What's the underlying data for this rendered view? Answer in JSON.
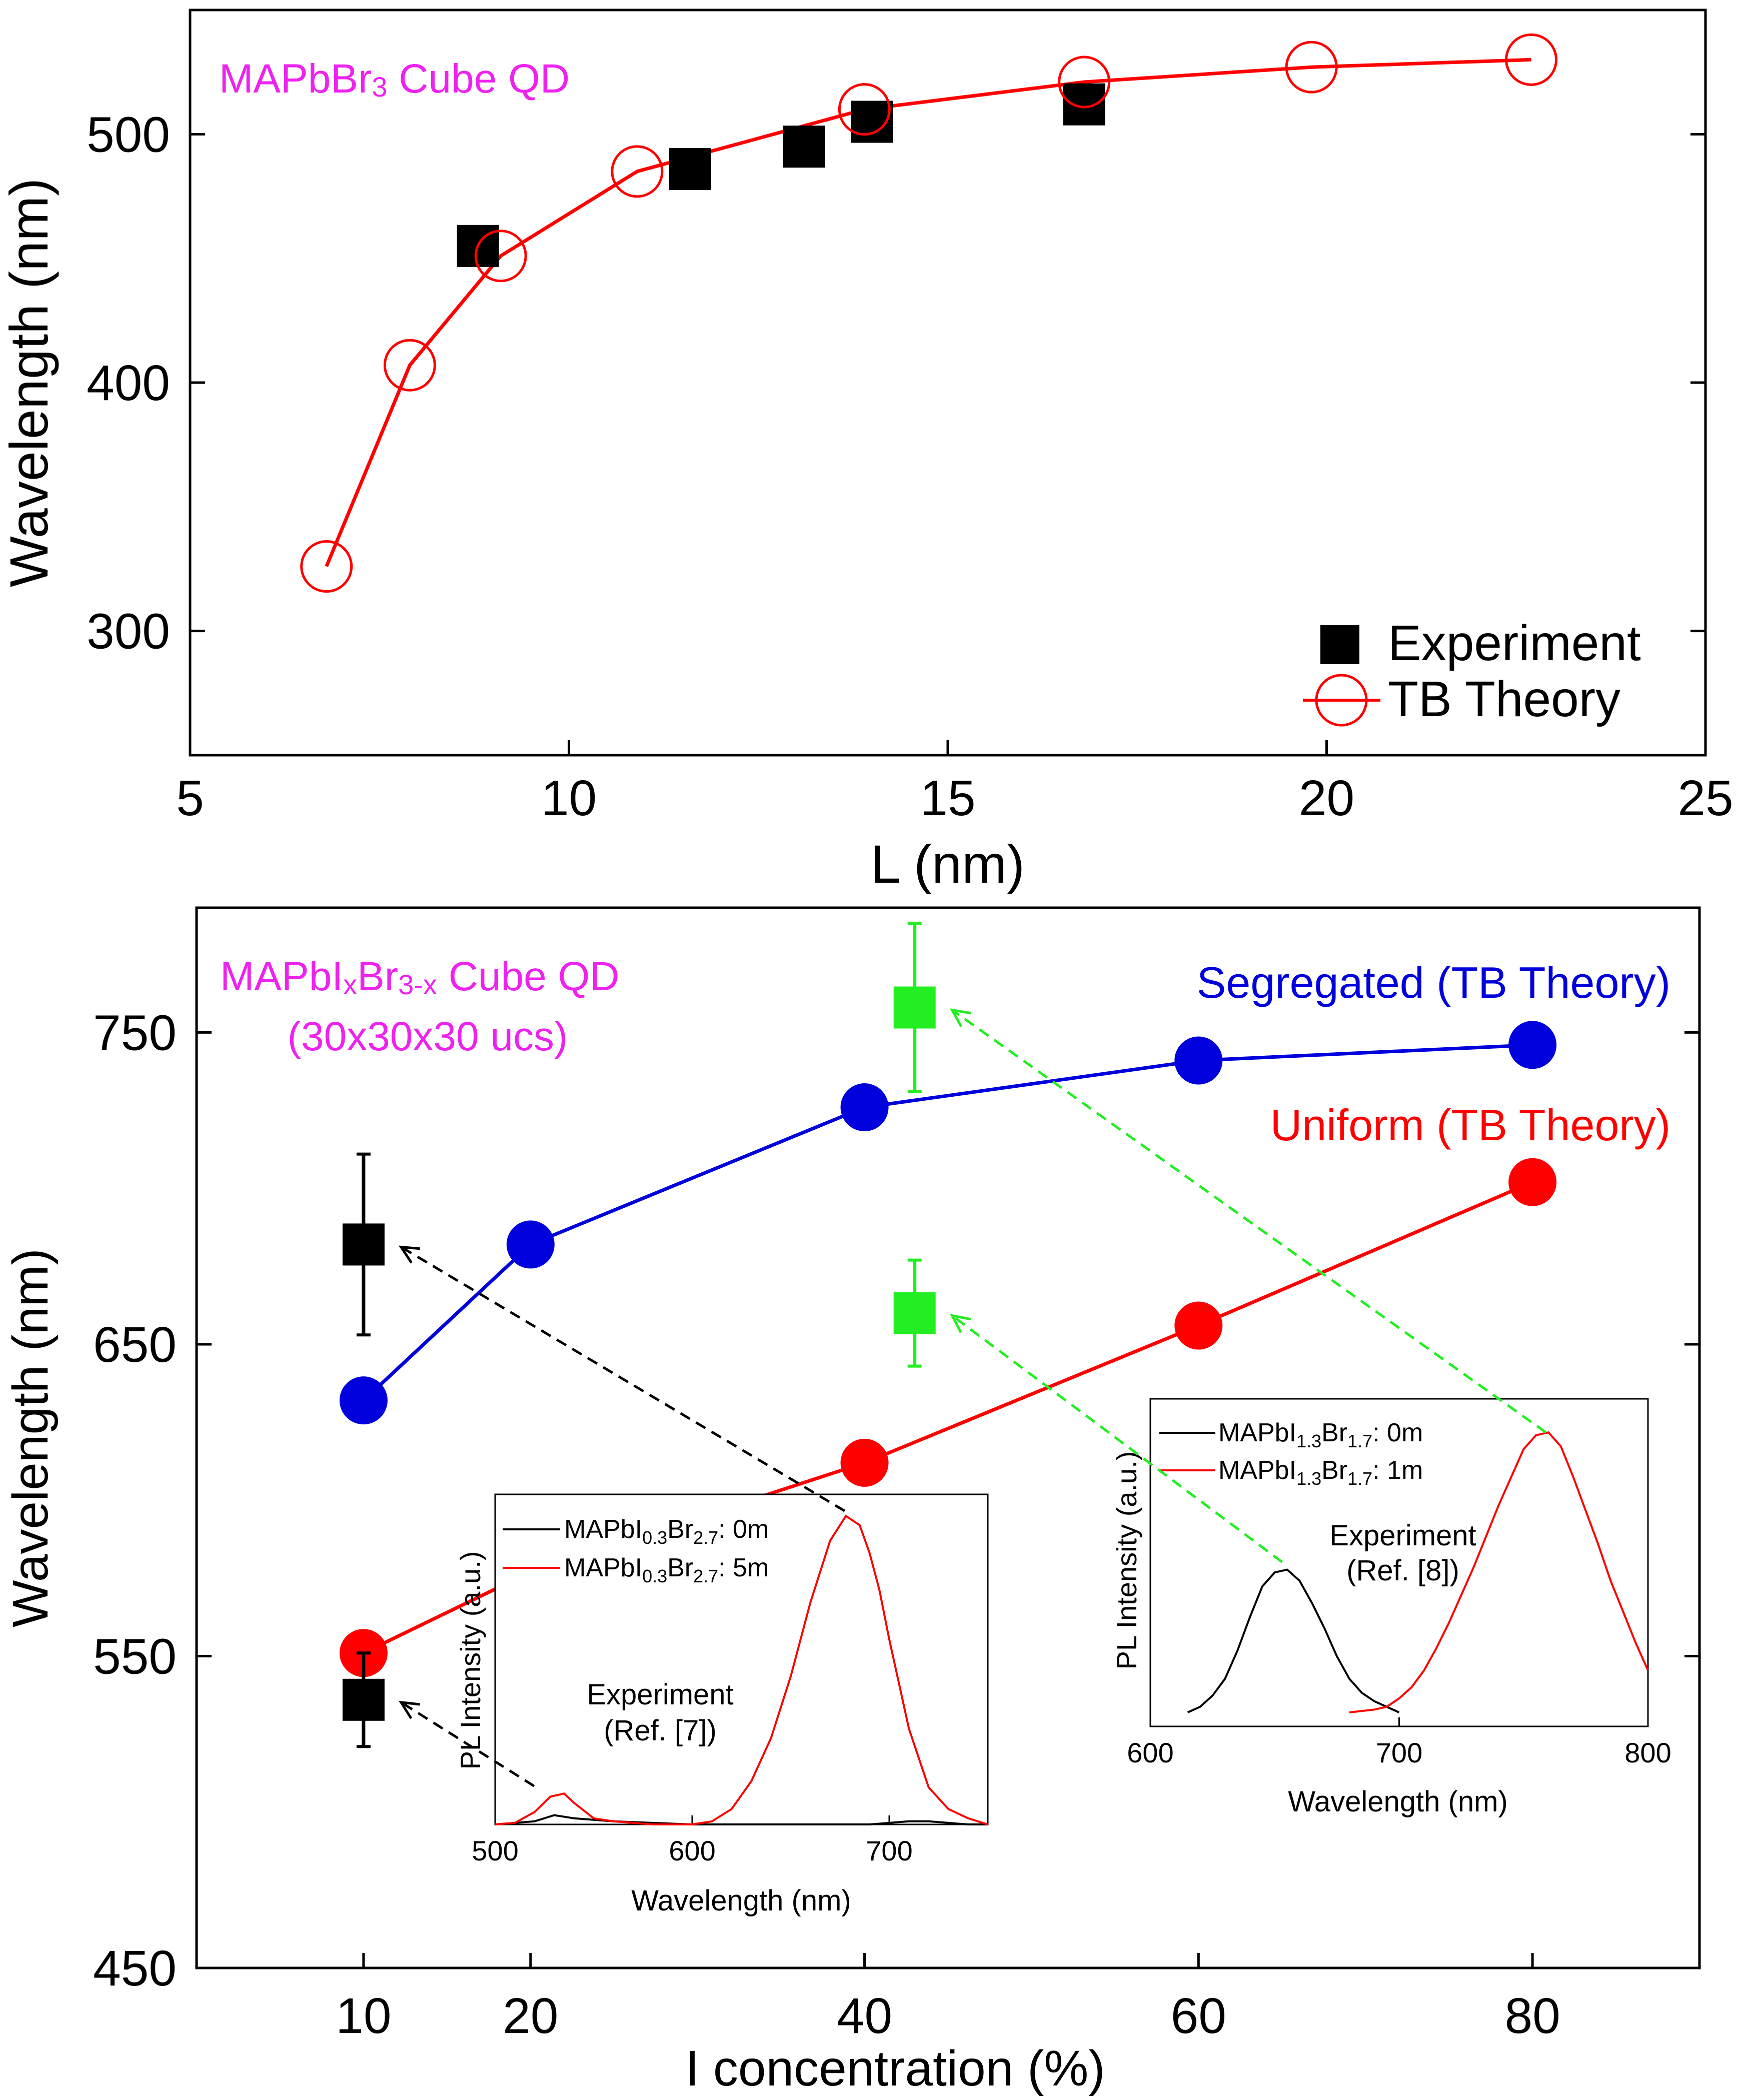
{
  "colors": {
    "axis": "#000000",
    "experiment": "#000000",
    "tb_theory": "#ff0000",
    "segregated": "#0000dd",
    "uniform": "#ff0000",
    "green_exp": "#22ee22",
    "label_magenta": "#ee22ee"
  },
  "chart_data": [
    {
      "type": "scatter",
      "title": "",
      "annotation_main": "MAPbBr",
      "annotation_sub": "3",
      "annotation_tail": " Cube QD",
      "xlabel": "L (nm)",
      "ylabel": "Wavelength (nm)",
      "xlim": [
        5,
        25
      ],
      "ylim": [
        250,
        550
      ],
      "xticks": [
        5,
        10,
        15,
        20,
        25
      ],
      "yticks": [
        300,
        400,
        500
      ],
      "legend_placement": "bottom-right",
      "series": [
        {
          "name": "Experiment",
          "marker": "filled-square",
          "x": [
            8.8,
            11.6,
            13.1,
            14.0,
            16.8
          ],
          "y": [
            455,
            486,
            495,
            505,
            512
          ]
        },
        {
          "name": "TB Theory",
          "marker": "open-circle-line",
          "x": [
            6.8,
            7.9,
            9.1,
            10.9,
            13.9,
            16.8,
            19.8,
            22.7
          ],
          "y": [
            326,
            407,
            451,
            485,
            510,
            521,
            527,
            530
          ]
        }
      ]
    },
    {
      "type": "line",
      "title": "",
      "annotation_line1_main": "MAPbI",
      "annotation_line1_sub1": "x",
      "annotation_line1_mid": "Br",
      "annotation_line1_sub2": "3-x",
      "annotation_line1_tail": " Cube QD",
      "annotation_line2": "(30x30x30 ucs)",
      "xlabel": "I concentration (%)",
      "ylabel": "Wavelength (nm)",
      "xlim": [
        0,
        90
      ],
      "ylim": [
        450,
        790
      ],
      "xticks": [
        10,
        20,
        40,
        60,
        80
      ],
      "yticks": [
        450,
        550,
        650,
        750
      ],
      "series": [
        {
          "name": "Segregated (TB Theory)",
          "x": [
            10,
            20,
            40,
            60,
            80
          ],
          "y": [
            632,
            682,
            726,
            741,
            746
          ]
        },
        {
          "name": "Uniform (TB Theory)",
          "x": [
            10,
            20,
            40,
            60,
            80
          ],
          "y": [
            551,
            577,
            612,
            656,
            702
          ]
        },
        {
          "name": "Experiment (Ref. [7])",
          "x": [
            10,
            10
          ],
          "y": [
            682,
            536
          ],
          "yerr": [
            29,
            15
          ]
        },
        {
          "name": "Experiment (Ref. [8])",
          "x": [
            43,
            43
          ],
          "y": [
            758,
            660
          ],
          "yerr": [
            27,
            17
          ]
        }
      ]
    },
    {
      "type": "line",
      "title": "",
      "annotation_line1": "Experiment",
      "annotation_line2": "(Ref. [7])",
      "xlabel": "Wavelength (nm)",
      "ylabel": "PL Intensity (a.u.)",
      "xlim": [
        500,
        750
      ],
      "ylim": [
        0,
        1.07
      ],
      "xticks": [
        500,
        600,
        700
      ],
      "series": [
        {
          "name": "MAPbI0.3Br2.7: 0m",
          "label_main": "MAPbI",
          "label_sub1": "0.3",
          "label_mid": "Br",
          "label_sub2": "2.7",
          "label_tail": ": 0m",
          "x": [
            500,
            520,
            530,
            540,
            560,
            600,
            620,
            690,
            710,
            720,
            740,
            750
          ],
          "y": [
            0.0,
            0.01,
            0.03,
            0.02,
            0.01,
            0.0,
            0.0,
            0.0,
            0.01,
            0.01,
            0.0,
            0.0
          ]
        },
        {
          "name": "MAPbI0.3Br2.7: 5m",
          "label_main": "MAPbI",
          "label_sub1": "0.3",
          "label_mid": "Br",
          "label_sub2": "2.7",
          "label_tail": ": 5m",
          "x": [
            500,
            510,
            520,
            528,
            535,
            540,
            550,
            560,
            580,
            600,
            610,
            620,
            630,
            640,
            650,
            660,
            670,
            678,
            685,
            690,
            695,
            700,
            710,
            720,
            730,
            740,
            750
          ],
          "y": [
            0.0,
            0.005,
            0.04,
            0.09,
            0.1,
            0.07,
            0.02,
            0.01,
            0.0,
            0.0,
            0.01,
            0.05,
            0.14,
            0.28,
            0.48,
            0.72,
            0.92,
            1.0,
            0.97,
            0.88,
            0.76,
            0.6,
            0.31,
            0.12,
            0.05,
            0.02,
            0.0
          ]
        }
      ]
    },
    {
      "type": "line",
      "title": "",
      "annotation_line1": "Experiment",
      "annotation_line2": "(Ref. [8])",
      "xlabel": "Wavelength (nm)",
      "ylabel": "PL Intensity (a.u.)",
      "xlim": [
        600,
        800
      ],
      "ylim": [
        -0.05,
        1.12
      ],
      "xticks": [
        600,
        700,
        800
      ],
      "series": [
        {
          "name": "MAPbI1.3Br1.7: 0m",
          "label_main": "MAPbI",
          "label_sub1": "1.3",
          "label_mid": "Br",
          "label_sub2": "1.7",
          "label_tail": ": 0m",
          "x": [
            615,
            620,
            625,
            630,
            635,
            640,
            645,
            650,
            655,
            660,
            665,
            670,
            675,
            680,
            685,
            690,
            695,
            700
          ],
          "y": [
            0.0,
            0.02,
            0.06,
            0.12,
            0.22,
            0.34,
            0.45,
            0.5,
            0.51,
            0.47,
            0.39,
            0.3,
            0.2,
            0.12,
            0.07,
            0.04,
            0.02,
            0.0
          ]
        },
        {
          "name": "MAPbI1.3Br1.7: 1m",
          "label_main": "MAPbI",
          "label_sub1": "1.3",
          "label_mid": "Br",
          "label_sub2": "1.7",
          "label_tail": ": 1m",
          "x": [
            680,
            690,
            695,
            700,
            705,
            710,
            715,
            720,
            725,
            730,
            735,
            740,
            745,
            750,
            755,
            760,
            765,
            770,
            775,
            780,
            785,
            790,
            795,
            800
          ],
          "y": [
            0.0,
            0.01,
            0.02,
            0.05,
            0.09,
            0.15,
            0.23,
            0.32,
            0.42,
            0.52,
            0.63,
            0.74,
            0.84,
            0.94,
            0.99,
            1.0,
            0.95,
            0.84,
            0.72,
            0.6,
            0.47,
            0.36,
            0.25,
            0.15
          ]
        }
      ]
    }
  ],
  "legend_top": {
    "experiment_label": "Experiment",
    "theory_label": "TB Theory"
  },
  "labels_bottom": {
    "segregated": "Segregated (TB Theory)",
    "uniform": "Uniform (TB Theory)"
  }
}
